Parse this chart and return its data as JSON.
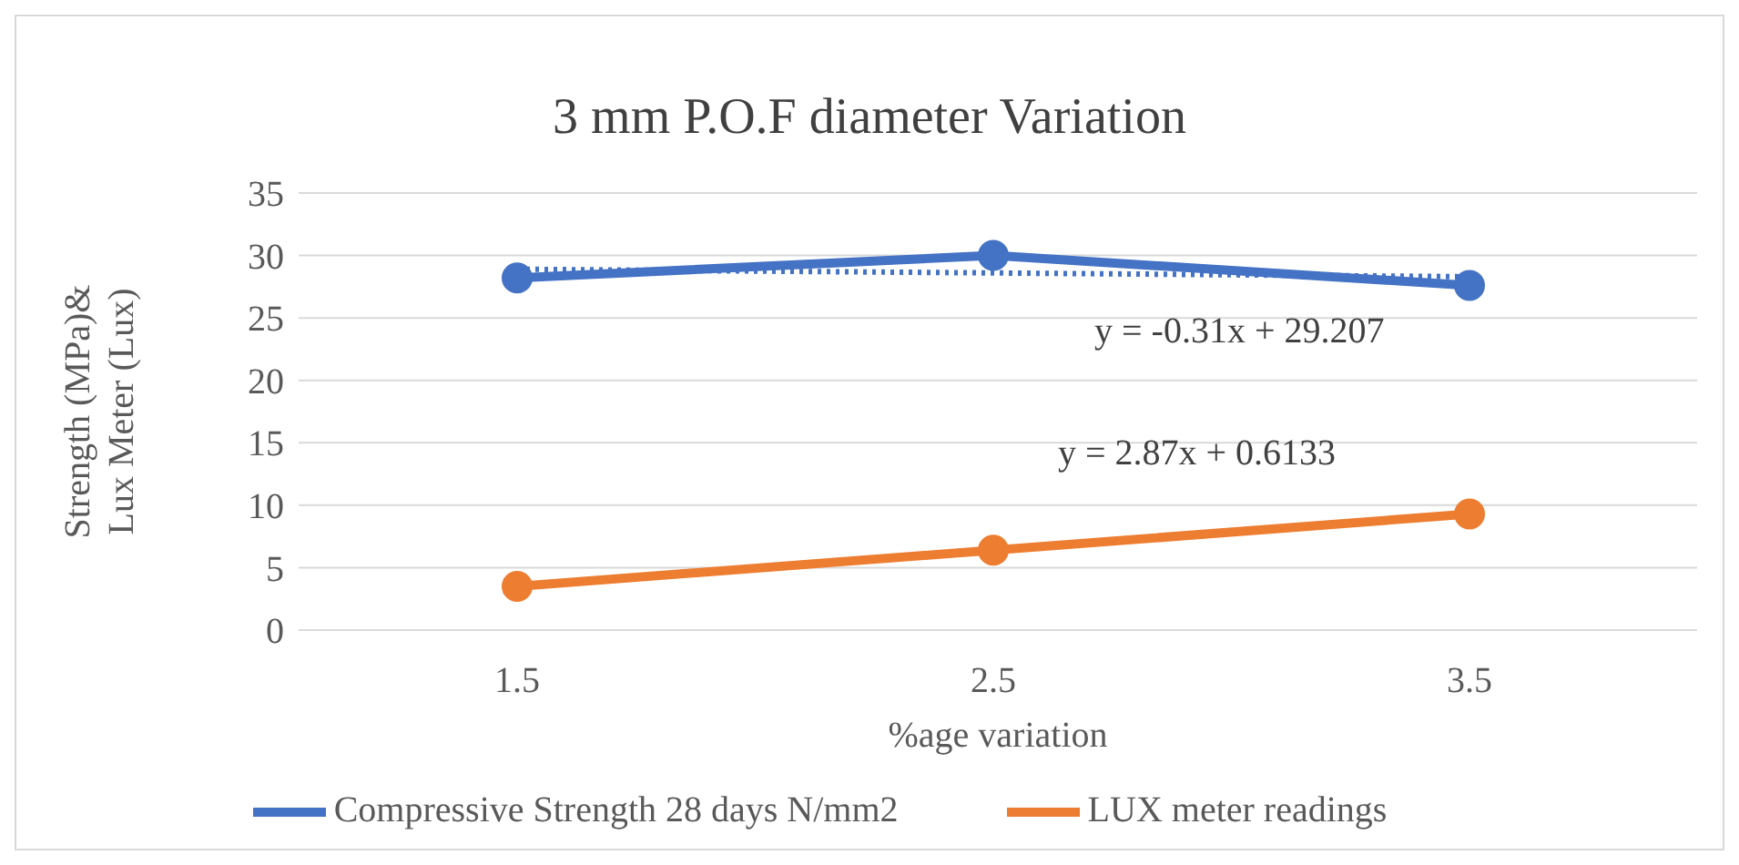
{
  "chart_data": {
    "type": "line",
    "title": "3 mm P.O.F diameter Variation",
    "xlabel": "%age variation",
    "ylabel": "Strength (MPa)& Lux Meter (Lux)",
    "categories": [
      "1.5",
      "2.5",
      "3.5"
    ],
    "series": [
      {
        "name": "Compressive Strength 28 days N/mm2",
        "color": "#4472c4",
        "values": [
          28.2,
          30.0,
          27.6
        ]
      },
      {
        "name": "LUX meter readings",
        "color": "#ed7d31",
        "values": [
          3.5,
          6.4,
          9.3
        ]
      },
      {
        "type": "line",
        "x": [
          "1.5",
          "3.5"
        ],
        "color": "#4472c4",
        "values": [
          28.9,
          28.3
        ],
        "line_style": "dotted",
        "marker": "none"
      }
    ],
    "ylim": [
      0,
      35
    ],
    "yticks": [
      0,
      5,
      10,
      15,
      20,
      25,
      30,
      35
    ],
    "grid": "y",
    "legend": "bottom",
    "marker": "circle",
    "line_style": "solid",
    "annotations": [
      "y = -0.31x + 29.207",
      "y = 2.87x + 0.6133"
    ]
  }
}
